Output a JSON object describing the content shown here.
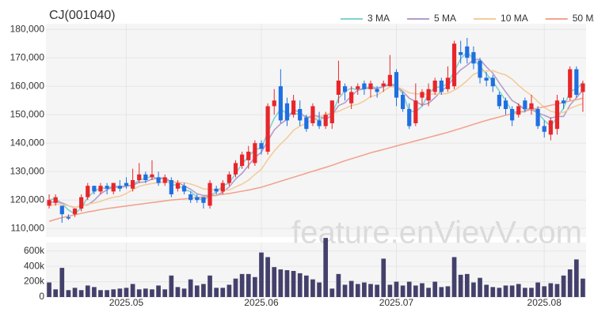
{
  "chart_data": {
    "type": "candlestick",
    "title": "CJ(001040)",
    "watermark": "feature.enVievV.com",
    "categories": [
      null,
      null,
      null,
      null,
      null,
      null,
      null,
      null,
      null,
      null,
      null,
      null,
      "2025.05",
      null,
      null,
      null,
      null,
      null,
      null,
      null,
      null,
      null,
      null,
      null,
      null,
      null,
      null,
      null,
      null,
      null,
      null,
      null,
      null,
      "2025.06",
      null,
      null,
      null,
      null,
      null,
      null,
      null,
      null,
      null,
      null,
      null,
      null,
      null,
      null,
      null,
      null,
      null,
      null,
      null,
      null,
      "2025.07",
      null,
      null,
      null,
      null,
      null,
      null,
      null,
      null,
      null,
      null,
      null,
      null,
      null,
      null,
      null,
      null,
      null,
      null,
      null,
      null,
      null,
      null,
      "2025.08",
      null,
      null,
      null,
      null,
      null,
      null
    ],
    "open": [
      118000,
      119000,
      118000,
      114000,
      115000,
      117000,
      121000,
      125000,
      123000,
      125000,
      123000,
      125000,
      126000,
      124000,
      127000,
      129000,
      128000,
      128000,
      126000,
      127000,
      124000,
      125000,
      122000,
      121000,
      121000,
      118000,
      124000,
      123000,
      126000,
      129000,
      132000,
      134000,
      133000,
      140000,
      137000,
      153000,
      160000,
      154000,
      150000,
      152000,
      149000,
      147000,
      148000,
      146000,
      147000,
      157000,
      160000,
      154000,
      159000,
      161000,
      159000,
      159000,
      160000,
      160000,
      165000,
      157000,
      152000,
      147000,
      156000,
      155000,
      158000,
      162000,
      159000,
      160000,
      172000,
      174000,
      172000,
      169000,
      163000,
      163000,
      157000,
      155000,
      152000,
      150000,
      155000,
      152000,
      152000,
      146000,
      143000,
      145000,
      155000,
      156000,
      166000,
      158000
    ],
    "high": [
      122000,
      122000,
      118000,
      115000,
      117000,
      122000,
      126000,
      125000,
      126000,
      126000,
      126000,
      127000,
      128000,
      131000,
      133000,
      130000,
      134000,
      130000,
      129000,
      128000,
      127000,
      126000,
      123000,
      122000,
      121000,
      127000,
      125000,
      127000,
      130000,
      134000,
      137000,
      139000,
      141000,
      141000,
      154000,
      159000,
      166000,
      156000,
      157000,
      155000,
      150000,
      154000,
      151000,
      151000,
      155000,
      169000,
      161000,
      160000,
      161000,
      162000,
      162000,
      160000,
      162000,
      171000,
      166000,
      158000,
      154000,
      161000,
      159000,
      161000,
      163000,
      163000,
      167000,
      176000,
      176000,
      177000,
      174000,
      170000,
      165000,
      164000,
      158000,
      156000,
      153000,
      154000,
      156000,
      157000,
      153000,
      148000,
      149000,
      157000,
      156000,
      167000,
      167000,
      162000
    ],
    "low": [
      117000,
      118000,
      112000,
      113000,
      114000,
      116000,
      120000,
      122000,
      122000,
      122000,
      122000,
      123000,
      124000,
      123000,
      126000,
      126000,
      127000,
      125000,
      125000,
      121000,
      123000,
      122000,
      119000,
      119000,
      117000,
      117000,
      122000,
      122000,
      125000,
      128000,
      131000,
      131000,
      132000,
      136000,
      136000,
      150000,
      147000,
      146000,
      149000,
      146000,
      144000,
      146000,
      145000,
      145000,
      145000,
      154000,
      155000,
      152000,
      157000,
      157000,
      156000,
      156000,
      158000,
      160000,
      153000,
      151000,
      145000,
      146000,
      153000,
      153000,
      157000,
      157000,
      158000,
      159000,
      168000,
      168000,
      166000,
      161000,
      160000,
      158000,
      152000,
      150000,
      146000,
      149000,
      151000,
      150000,
      145000,
      142000,
      141000,
      143000,
      152000,
      155000,
      156000,
      151000
    ],
    "close": [
      120000,
      121000,
      115000,
      113500,
      117000,
      121000,
      125000,
      123000,
      125000,
      124000,
      126000,
      124000,
      125000,
      127000,
      129000,
      127000,
      129000,
      126000,
      128000,
      122000,
      126000,
      123000,
      120000,
      120000,
      119000,
      126000,
      123000,
      126000,
      129000,
      133000,
      136000,
      137000,
      140000,
      138000,
      153000,
      155000,
      148000,
      148000,
      155000,
      148000,
      145000,
      153000,
      146000,
      150000,
      155000,
      162000,
      158000,
      158000,
      160000,
      159000,
      161000,
      158000,
      161000,
      164000,
      156000,
      152000,
      146000,
      155000,
      158000,
      159000,
      162000,
      158000,
      163000,
      175000,
      171000,
      170000,
      168000,
      163000,
      162000,
      160000,
      153000,
      152000,
      148000,
      153000,
      152000,
      154000,
      146000,
      144000,
      148000,
      155000,
      154000,
      166000,
      157000,
      161000
    ],
    "up_color": "#e8262b",
    "down_color": "#1f6fe0",
    "series": [
      {
        "name": "3 MA",
        "color": "#7fd3d0",
        "values": [
          120000,
          120500,
          118700,
          116500,
          115200,
          117200,
          121000,
          123000,
          124300,
          124000,
          125000,
          124700,
          125000,
          125300,
          127000,
          127700,
          128300,
          127300,
          127700,
          125300,
          125300,
          123700,
          123000,
          121000,
          119700,
          121700,
          122700,
          125000,
          126000,
          129300,
          132700,
          135300,
          137700,
          138300,
          143700,
          148700,
          152000,
          150300,
          150300,
          150300,
          149300,
          148700,
          148000,
          149700,
          150300,
          155700,
          158300,
          159300,
          158700,
          159000,
          160000,
          159300,
          160000,
          161000,
          160300,
          157300,
          151300,
          151000,
          153000,
          157300,
          159700,
          159700,
          161000,
          165300,
          169700,
          172000,
          169700,
          167000,
          164300,
          161700,
          158300,
          155000,
          151000,
          151000,
          151000,
          153000,
          150700,
          148000,
          146000,
          149000,
          152300,
          158300,
          159000,
          161300
        ]
      },
      {
        "name": "5 MA",
        "color": "#b59ccb",
        "values": [
          119000,
          119500,
          119000,
          118000,
          117300,
          118100,
          118300,
          119900,
          122200,
          123600,
          124600,
          124400,
          124800,
          125200,
          126200,
          126400,
          127400,
          127600,
          127800,
          126400,
          126200,
          125000,
          123800,
          122200,
          121600,
          121600,
          121600,
          122800,
          124600,
          127400,
          129400,
          132200,
          135000,
          136800,
          140800,
          144600,
          146800,
          148400,
          151800,
          150800,
          148800,
          149800,
          149400,
          148400,
          149800,
          153200,
          154200,
          156600,
          158600,
          159400,
          159200,
          159200,
          159800,
          160600,
          160000,
          158200,
          155800,
          154600,
          153400,
          154000,
          156000,
          158400,
          160000,
          163400,
          165800,
          167400,
          169400,
          169400,
          166800,
          164600,
          161200,
          158000,
          155000,
          153600,
          151600,
          151800,
          150600,
          149800,
          148800,
          149400,
          149400,
          153400,
          156000,
          158600
        ]
      },
      {
        "name": "10 MA",
        "color": "#f3cc9c",
        "values": [
          118000,
          118500,
          118500,
          118000,
          117500,
          117800,
          118500,
          119000,
          119500,
          120400,
          121000,
          121300,
          122300,
          123600,
          124800,
          125400,
          125800,
          126100,
          126400,
          126200,
          126200,
          126100,
          125600,
          124900,
          123900,
          123800,
          123500,
          123500,
          123500,
          124600,
          125600,
          127000,
          129000,
          130800,
          134200,
          137200,
          139700,
          141900,
          144500,
          146000,
          146900,
          148500,
          149100,
          150300,
          150500,
          151200,
          152200,
          153200,
          153700,
          154800,
          156400,
          156900,
          158400,
          159800,
          159900,
          158900,
          157700,
          157400,
          157200,
          157200,
          157300,
          157300,
          157500,
          158600,
          160100,
          162000,
          164200,
          165000,
          165400,
          165500,
          164600,
          164000,
          162500,
          160300,
          158400,
          156800,
          154600,
          152600,
          151200,
          150700,
          150800,
          152200,
          153100,
          153900
        ]
      },
      {
        "name": "50 MA",
        "color": "#f2a48f",
        "values": [
          112500,
          113200,
          113800,
          114300,
          114800,
          115300,
          115800,
          116200,
          116600,
          117000,
          117300,
          117600,
          117900,
          118200,
          118500,
          118800,
          119100,
          119400,
          119700,
          120000,
          120200,
          120400,
          120600,
          120900,
          121100,
          121400,
          121700,
          122000,
          122300,
          122700,
          123100,
          123500,
          124000,
          124500,
          125200,
          125900,
          126600,
          127300,
          128000,
          128700,
          129400,
          130100,
          130800,
          131500,
          132200,
          133000,
          133800,
          134500,
          135200,
          135900,
          136600,
          137200,
          137800,
          138400,
          139000,
          139600,
          140200,
          140800,
          141400,
          142000,
          142600,
          143200,
          143800,
          144500,
          145200,
          145900,
          146600,
          147300,
          148000,
          148600,
          149200,
          149800,
          150300,
          150800,
          151300,
          151800,
          152300,
          152800,
          153300,
          153800,
          154300,
          154800,
          155300,
          155800
        ]
      }
    ],
    "ylim": [
      107000,
      182000
    ],
    "yticks": [
      {
        "value": 110000,
        "label": "110,000"
      },
      {
        "value": 120000,
        "label": "120,000"
      },
      {
        "value": 130000,
        "label": "130,000"
      },
      {
        "value": 140000,
        "label": "140,000"
      },
      {
        "value": 150000,
        "label": "150,000"
      },
      {
        "value": 160000,
        "label": "160,000"
      },
      {
        "value": 170000,
        "label": "170,000"
      },
      {
        "value": 180000,
        "label": "180,000"
      }
    ],
    "grid": true,
    "legend": "top-right",
    "volume": {
      "color": "#43416b",
      "values": [
        190000,
        100000,
        380000,
        90000,
        120000,
        90000,
        150000,
        130000,
        90000,
        90000,
        100000,
        110000,
        120000,
        170000,
        100000,
        110000,
        100000,
        150000,
        100000,
        280000,
        130000,
        110000,
        230000,
        150000,
        170000,
        280000,
        120000,
        120000,
        160000,
        240000,
        300000,
        300000,
        260000,
        580000,
        520000,
        390000,
        360000,
        350000,
        340000,
        310000,
        280000,
        230000,
        190000,
        770000,
        110000,
        300000,
        160000,
        210000,
        170000,
        190000,
        170000,
        160000,
        500000,
        160000,
        200000,
        150000,
        200000,
        150000,
        180000,
        120000,
        200000,
        130000,
        140000,
        520000,
        290000,
        300000,
        190000,
        250000,
        160000,
        130000,
        120000,
        150000,
        150000,
        170000,
        120000,
        120000,
        190000,
        140000,
        180000,
        170000,
        280000,
        360000,
        490000,
        240000
      ],
      "ylim": [
        0,
        710000
      ],
      "yticks": [
        0,
        {
          "value": 200000,
          "label": "200k"
        },
        {
          "value": 400000,
          "label": "400k"
        },
        {
          "value": 600000,
          "label": "600k"
        }
      ]
    }
  }
}
